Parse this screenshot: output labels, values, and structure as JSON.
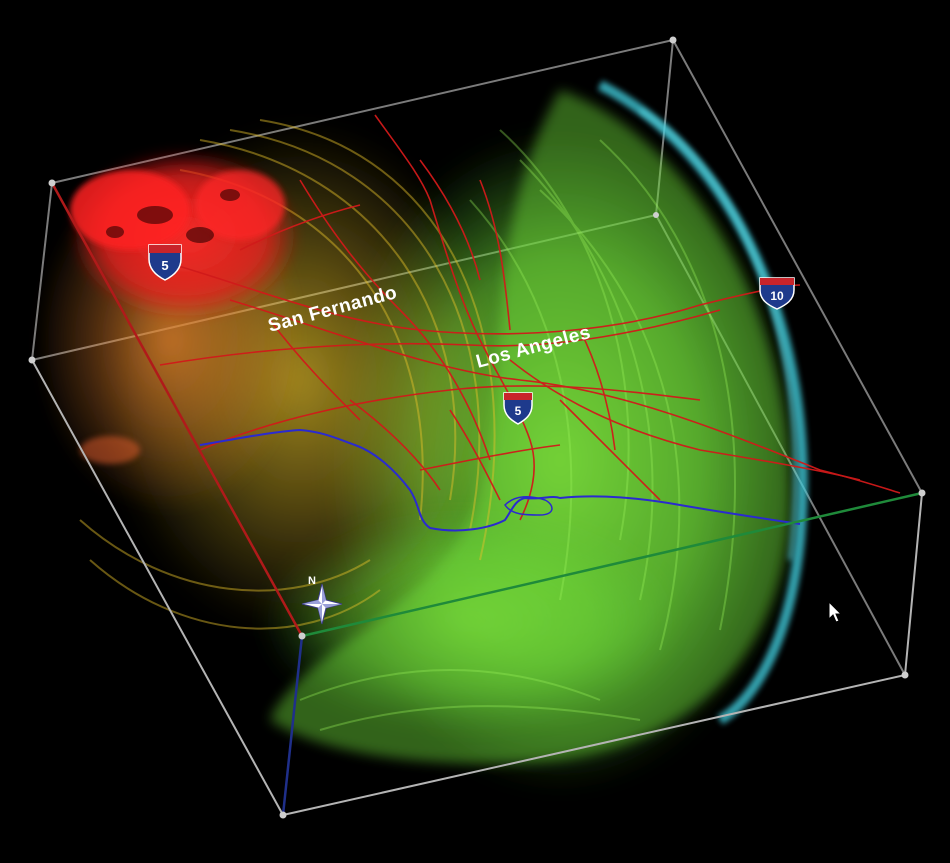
{
  "labels": {
    "san_fernando": "San Fernando",
    "los_angeles": "Los Angeles"
  },
  "shields": {
    "i5_north": "5",
    "i5_central": "5",
    "i10": "10"
  },
  "compass": {
    "north": "N"
  },
  "colors": {
    "background": "#000000",
    "wave_red": "#ff2a2a",
    "wave_orange": "#e8832d",
    "wave_yellow": "#e6c12a",
    "wave_green": "#7fe23a",
    "wave_cyan": "#3fc9d9",
    "roads": "#d11a1a",
    "coastline": "#2a2ad0",
    "box_edges": "#b4b4b4",
    "axis_red": "#b01a1a",
    "axis_green": "#1f8a3a",
    "axis_blue": "#1f2f8a",
    "shield_blue": "#1e3a8c",
    "shield_red": "#c8242b"
  },
  "cursor_icon": "mouse-pointer-icon"
}
